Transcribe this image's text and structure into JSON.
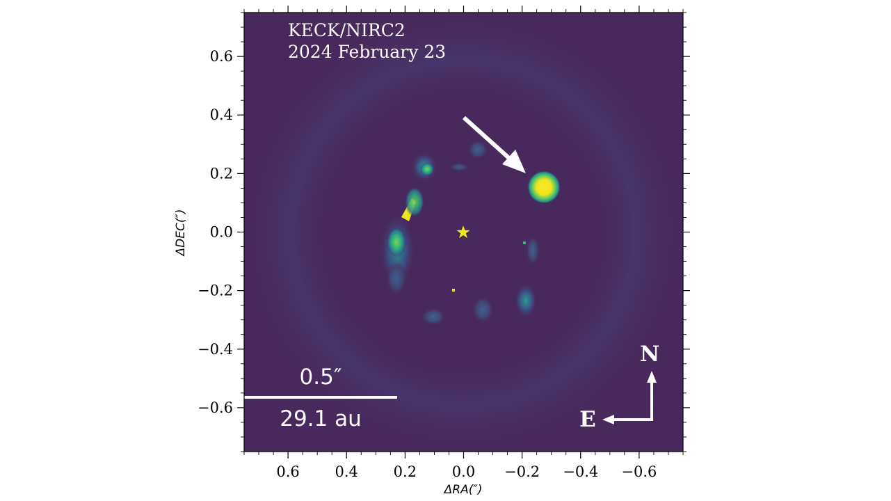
{
  "image": {
    "instrument_label": "KECK/NIRC2",
    "date_label": "2024 February 23",
    "background_color": "#48295d",
    "colormap": "viridis",
    "star_marker": "star-icon",
    "star_color": "#f1e51c",
    "companion_color": "#f5e31d"
  },
  "axes": {
    "xlabel": "ΔRA(″)",
    "ylabel": "ΔDEC(″)",
    "xlim": [
      0.75,
      -0.75
    ],
    "ylim": [
      -0.75,
      0.75
    ],
    "x_ticks": [
      {
        "value": 0.6,
        "label": "0.6"
      },
      {
        "value": 0.4,
        "label": "0.4"
      },
      {
        "value": 0.2,
        "label": "0.2"
      },
      {
        "value": 0.0,
        "label": "0.0"
      },
      {
        "value": -0.2,
        "label": "−0.2"
      },
      {
        "value": -0.4,
        "label": "−0.4"
      },
      {
        "value": -0.6,
        "label": "−0.6"
      }
    ],
    "y_ticks": [
      {
        "value": 0.6,
        "label": "0.6"
      },
      {
        "value": 0.4,
        "label": "0.4"
      },
      {
        "value": 0.2,
        "label": "0.2"
      },
      {
        "value": 0.0,
        "label": "0.0"
      },
      {
        "value": -0.2,
        "label": "−0.2"
      },
      {
        "value": -0.4,
        "label": "−0.4"
      },
      {
        "value": -0.6,
        "label": "−0.6"
      }
    ]
  },
  "scale_bar": {
    "angular_label": "0.5″",
    "physical_label": "29.1 au",
    "length_arcsec": 0.5
  },
  "compass": {
    "north_label": "N",
    "east_label": "E"
  }
}
